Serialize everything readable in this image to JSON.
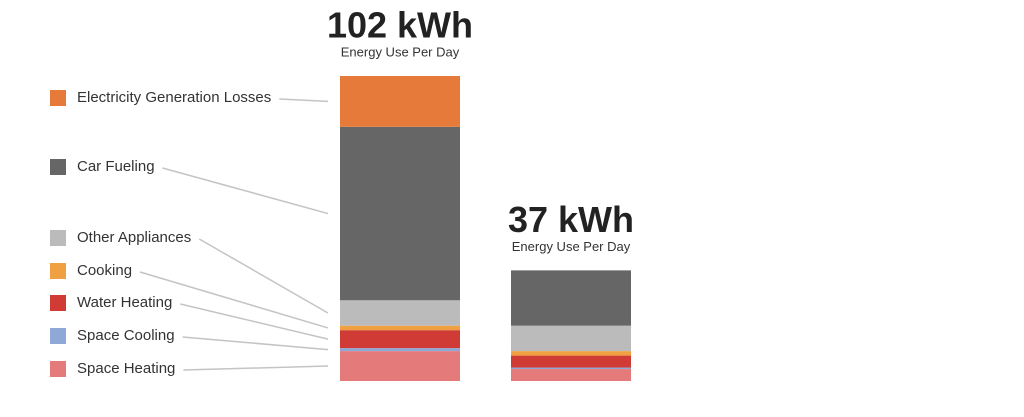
{
  "chart_data": {
    "type": "stacked-bar",
    "categories": [
      "102 kWh",
      "37 kWh"
    ],
    "bar_sublabel": "Energy Use Per Day",
    "series": [
      {
        "name": "Space Heating",
        "color": "#e57a7a",
        "values": [
          10,
          4
        ]
      },
      {
        "name": "Space Cooling",
        "color": "#8fa9d6",
        "values": [
          1,
          0.5
        ]
      },
      {
        "name": "Water Heating",
        "color": "#d13b35",
        "values": [
          6,
          4
        ]
      },
      {
        "name": "Cooking",
        "color": "#f0a040",
        "values": [
          1.5,
          1.5
        ]
      },
      {
        "name": "Other Appliances",
        "color": "#bbbbbb",
        "values": [
          8.5,
          8.5
        ]
      },
      {
        "name": "Car Fueling",
        "color": "#666666",
        "values": [
          58,
          18.5
        ]
      },
      {
        "name": "Electricity Generation Losses",
        "color": "#e57a3a",
        "values": [
          17,
          0
        ]
      }
    ]
  }
}
